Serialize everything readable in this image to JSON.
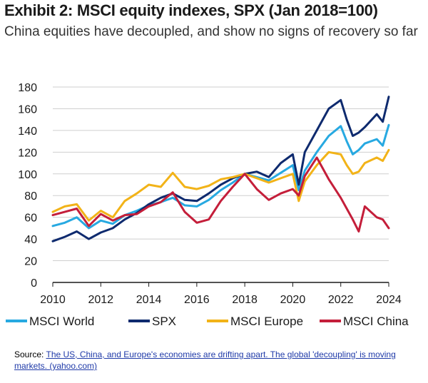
{
  "header": {
    "title": "Exhibit 2: MSCI equity indexes, SPX (Jan 2018=100)",
    "subtitle": "China equities have decoupled, and show no signs of recovery so far"
  },
  "source": {
    "prefix": "Source: ",
    "link_text": "The US, China, and Europe's economies are drifting apart. The global 'decoupling' is moving markets. (yahoo.com)"
  },
  "chart_data": {
    "type": "line",
    "title": "Exhibit 2: MSCI equity indexes, SPX (Jan 2018=100)",
    "xlabel": "",
    "ylabel": "",
    "xlim": [
      2010,
      2024
    ],
    "ylim": [
      0,
      180
    ],
    "x_ticks": [
      2010,
      2012,
      2014,
      2016,
      2018,
      2020,
      2022,
      2024
    ],
    "y_ticks": [
      0,
      20,
      40,
      60,
      80,
      100,
      120,
      140,
      160,
      180
    ],
    "grid": "horizontal",
    "legend_position": "bottom",
    "x": [
      2010,
      2010.5,
      2011,
      2011.5,
      2012,
      2012.5,
      2013,
      2013.5,
      2014,
      2014.5,
      2015,
      2015.5,
      2016,
      2016.5,
      2017,
      2017.5,
      2018,
      2018.5,
      2019,
      2019.5,
      2020,
      2020.25,
      2020.5,
      2021,
      2021.5,
      2022,
      2022.25,
      2022.5,
      2022.75,
      2023,
      2023.5,
      2023.75,
      2024
    ],
    "series": [
      {
        "name": "MSCI World",
        "color": "#27a9e1",
        "values": [
          52,
          55,
          60,
          50,
          57,
          54,
          62,
          66,
          71,
          74,
          78,
          71,
          70,
          76,
          85,
          92,
          100,
          97,
          94,
          101,
          108,
          85,
          103,
          120,
          135,
          144,
          130,
          118,
          122,
          128,
          132,
          126,
          145
        ]
      },
      {
        "name": "SPX",
        "color": "#0e2a6e",
        "values": [
          38,
          42,
          47,
          40,
          46,
          50,
          58,
          64,
          72,
          78,
          82,
          76,
          75,
          82,
          90,
          96,
          100,
          102,
          97,
          110,
          118,
          90,
          120,
          140,
          160,
          168,
          150,
          135,
          138,
          143,
          155,
          148,
          171
        ]
      },
      {
        "name": "MSCI Europe",
        "color": "#f2b318",
        "values": [
          65,
          70,
          72,
          57,
          66,
          60,
          75,
          82,
          90,
          88,
          101,
          88,
          86,
          89,
          95,
          97,
          100,
          96,
          92,
          96,
          100,
          75,
          93,
          108,
          120,
          118,
          108,
          100,
          102,
          110,
          115,
          112,
          122
        ]
      },
      {
        "name": "MSCI China",
        "color": "#c41e3a",
        "values": [
          62,
          65,
          68,
          52,
          63,
          57,
          62,
          63,
          70,
          74,
          83,
          65,
          55,
          58,
          75,
          88,
          100,
          86,
          76,
          82,
          86,
          80,
          98,
          115,
          95,
          78,
          68,
          58,
          47,
          70,
          60,
          58,
          50
        ]
      }
    ]
  }
}
